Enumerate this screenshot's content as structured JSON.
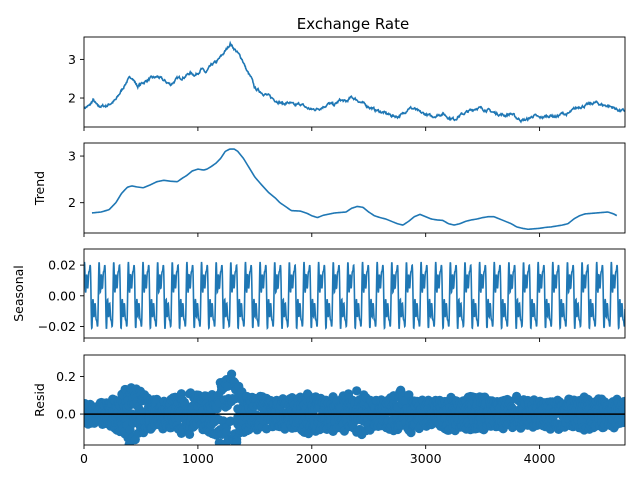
{
  "chart_data": [
    {
      "type": "line",
      "title": "Exchange Rate",
      "ylabel": "",
      "xlim": [
        0,
        4750
      ],
      "ylim": [
        1.25,
        3.58
      ],
      "yticks": [
        2,
        3
      ],
      "ytick_labels": [
        "2",
        "3"
      ],
      "color": "#1f77b4",
      "x_anchors": [
        0,
        50,
        80,
        120,
        200,
        280,
        330,
        380,
        420,
        470,
        520,
        580,
        650,
        700,
        760,
        820,
        880,
        930,
        980,
        1030,
        1070,
        1120,
        1170,
        1210,
        1250,
        1285,
        1300,
        1340,
        1390,
        1430,
        1470,
        1500,
        1560,
        1620,
        1680,
        1750,
        1800,
        1850,
        1900,
        1950,
        2000,
        2050,
        2100,
        2150,
        2200,
        2250,
        2300,
        2350,
        2400,
        2450,
        2500,
        2550,
        2600,
        2650,
        2700,
        2750,
        2800,
        2850,
        2900,
        2950,
        3000,
        3050,
        3100,
        3150,
        3200,
        3250,
        3300,
        3350,
        3400,
        3450,
        3500,
        3550,
        3600,
        3650,
        3700,
        3750,
        3800,
        3850,
        3900,
        3950,
        4000,
        4050,
        4100,
        4150,
        4200,
        4250,
        4300,
        4350,
        4400,
        4450,
        4500,
        4550,
        4600,
        4650,
        4700,
        4750
      ],
      "y_anchors": [
        1.75,
        1.8,
        1.95,
        1.78,
        1.8,
        1.95,
        2.2,
        2.45,
        2.55,
        2.3,
        2.4,
        2.5,
        2.55,
        2.45,
        2.35,
        2.5,
        2.55,
        2.65,
        2.6,
        2.75,
        2.65,
        2.85,
        2.95,
        3.1,
        3.25,
        3.42,
        3.35,
        3.2,
        3.0,
        2.7,
        2.5,
        2.25,
        2.15,
        2.05,
        1.95,
        1.85,
        1.88,
        1.8,
        1.85,
        1.75,
        1.7,
        1.72,
        1.78,
        1.85,
        1.82,
        1.95,
        1.9,
        2.02,
        1.95,
        1.85,
        1.78,
        1.7,
        1.65,
        1.6,
        1.55,
        1.52,
        1.58,
        1.75,
        1.72,
        1.62,
        1.58,
        1.52,
        1.55,
        1.6,
        1.5,
        1.45,
        1.55,
        1.62,
        1.68,
        1.75,
        1.72,
        1.68,
        1.62,
        1.58,
        1.55,
        1.6,
        1.48,
        1.42,
        1.45,
        1.55,
        1.48,
        1.52,
        1.55,
        1.52,
        1.6,
        1.58,
        1.7,
        1.78,
        1.8,
        1.85,
        1.88,
        1.82,
        1.8,
        1.75,
        1.68,
        1.66
      ],
      "noise": 0.035
    },
    {
      "type": "line",
      "title": "",
      "ylabel": "Trend",
      "xlim": [
        0,
        4750
      ],
      "ylim": [
        1.35,
        3.28
      ],
      "yticks": [
        2,
        3
      ],
      "ytick_labels": [
        "2",
        "3"
      ],
      "color": "#1f77b4",
      "x_anchors": [
        70,
        150,
        220,
        280,
        330,
        380,
        420,
        460,
        520,
        580,
        640,
        700,
        760,
        820,
        860,
        900,
        950,
        1000,
        1050,
        1080,
        1120,
        1160,
        1200,
        1240,
        1280,
        1320,
        1350,
        1400,
        1450,
        1500,
        1560,
        1620,
        1680,
        1720,
        1780,
        1820,
        1900,
        1960,
        2000,
        2050,
        2100,
        2200,
        2250,
        2300,
        2350,
        2400,
        2450,
        2500,
        2550,
        2600,
        2650,
        2700,
        2750,
        2800,
        2850,
        2900,
        2950,
        3000,
        3050,
        3100,
        3150,
        3200,
        3250,
        3300,
        3350,
        3400,
        3450,
        3500,
        3550,
        3600,
        3650,
        3700,
        3750,
        3800,
        3850,
        3900,
        3950,
        4000,
        4050,
        4100,
        4150,
        4200,
        4250,
        4300,
        4350,
        4400,
        4450,
        4500,
        4550,
        4600,
        4650,
        4680
      ],
      "y_anchors": [
        1.78,
        1.8,
        1.85,
        2.0,
        2.2,
        2.33,
        2.36,
        2.34,
        2.32,
        2.38,
        2.45,
        2.48,
        2.46,
        2.45,
        2.52,
        2.58,
        2.68,
        2.72,
        2.7,
        2.72,
        2.78,
        2.85,
        2.95,
        3.1,
        3.15,
        3.15,
        3.1,
        2.95,
        2.75,
        2.55,
        2.38,
        2.22,
        2.1,
        2.0,
        1.9,
        1.83,
        1.82,
        1.77,
        1.72,
        1.68,
        1.73,
        1.78,
        1.79,
        1.8,
        1.88,
        1.92,
        1.9,
        1.8,
        1.72,
        1.68,
        1.65,
        1.6,
        1.55,
        1.52,
        1.6,
        1.7,
        1.75,
        1.7,
        1.65,
        1.63,
        1.62,
        1.55,
        1.52,
        1.55,
        1.6,
        1.63,
        1.65,
        1.68,
        1.7,
        1.7,
        1.65,
        1.6,
        1.55,
        1.48,
        1.45,
        1.43,
        1.44,
        1.45,
        1.47,
        1.48,
        1.5,
        1.52,
        1.55,
        1.65,
        1.72,
        1.76,
        1.77,
        1.78,
        1.79,
        1.8,
        1.76,
        1.72
      ],
      "noise": 0
    },
    {
      "type": "line",
      "title": "",
      "ylabel": "Seasonal",
      "xlim": [
        0,
        4750
      ],
      "ylim": [
        -0.0275,
        0.0305
      ],
      "yticks": [
        -0.02,
        0.0,
        0.02
      ],
      "ytick_labels": [
        "−0.02",
        "0.00",
        "0.02"
      ],
      "color": "#1f77b4",
      "period": 128.5,
      "amplitude": 0.026
    },
    {
      "type": "scatter",
      "title": "",
      "ylabel": "Resid",
      "xlim": [
        0,
        4750
      ],
      "ylim": [
        -0.165,
        0.315
      ],
      "yticks": [
        0.0,
        0.2
      ],
      "ytick_labels": [
        "0.0",
        "0.2"
      ],
      "xticks": [
        0,
        1000,
        2000,
        3000,
        4000
      ],
      "xtick_labels": [
        "0",
        "1000",
        "2000",
        "3000",
        "4000"
      ],
      "color": "#1f77b4",
      "baseline": 0,
      "x_anchors": [
        0,
        100,
        200,
        280,
        350,
        400,
        480,
        560,
        620,
        700,
        780,
        860,
        900,
        960,
        1000,
        1080,
        1150,
        1220,
        1270,
        1300,
        1330,
        1400,
        1480,
        1560,
        1640,
        1720,
        1800,
        1880,
        1960,
        2040,
        2100,
        2180,
        2260,
        2340,
        2420,
        2500,
        2560,
        2620,
        2700,
        2760,
        2800,
        2900,
        3000,
        3100,
        3200,
        3300,
        3400,
        3500,
        3600,
        3700,
        3800,
        3900,
        4000,
        4100,
        4200,
        4300,
        4400,
        4500,
        4600,
        4700,
        4750
      ],
      "envelope": [
        0.06,
        0.06,
        0.08,
        0.1,
        0.12,
        0.21,
        0.14,
        0.1,
        0.08,
        0.1,
        0.11,
        0.12,
        0.09,
        0.17,
        0.12,
        0.1,
        0.15,
        0.2,
        0.25,
        0.29,
        0.22,
        0.12,
        0.1,
        0.1,
        0.08,
        0.1,
        0.09,
        0.11,
        0.12,
        0.11,
        0.09,
        0.11,
        0.1,
        0.12,
        0.14,
        0.1,
        0.09,
        0.08,
        0.1,
        0.13,
        0.14,
        0.1,
        0.08,
        0.08,
        0.11,
        0.09,
        0.1,
        0.1,
        0.08,
        0.09,
        0.1,
        0.08,
        0.08,
        0.09,
        0.1,
        0.08,
        0.1,
        0.09,
        0.08,
        0.09,
        0.09
      ]
    }
  ]
}
